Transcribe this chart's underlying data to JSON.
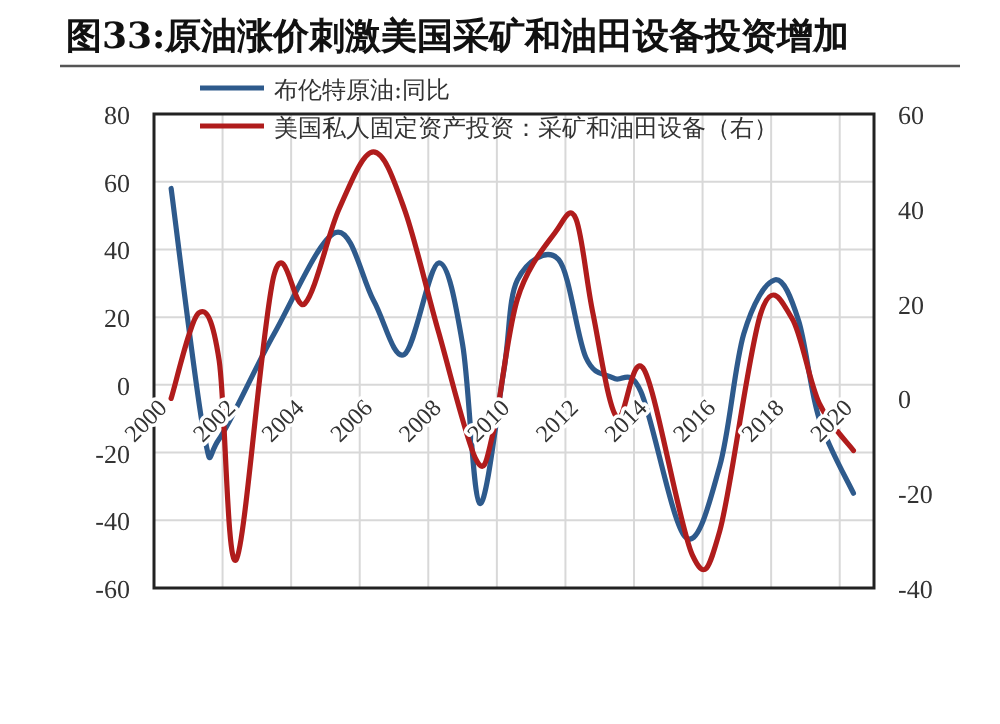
{
  "chart_data": {
    "type": "line",
    "title": "图33:原油涨价刺激美国采矿和油田设备投资增加",
    "xlim": [
      2000,
      2021
    ],
    "xticks": [
      2000,
      2002,
      2004,
      2006,
      2008,
      2010,
      2012,
      2014,
      2016,
      2018,
      2020
    ],
    "ylim": [
      -60,
      80
    ],
    "yticks": [
      -60,
      -40,
      -20,
      0,
      20,
      40,
      60,
      80
    ],
    "y2lim": [
      -40,
      60
    ],
    "y2ticks": [
      -40,
      -20,
      0,
      20,
      40,
      60
    ],
    "grid": true,
    "legend": "top left",
    "series": [
      {
        "name": "布伦特原油:同比",
        "color": "#2e5a8c",
        "x": [
          2000.5,
          2001.45,
          2001.9,
          2003.5,
          2005.3,
          2006.4,
          2007.3,
          2008.3,
          2009,
          2009.5,
          2010.2,
          2010.6,
          2011.8,
          2012.6,
          2013.4,
          2014.2,
          2015.5,
          2016.5,
          2017.2,
          2018.1,
          2018.8,
          2019.4,
          2020.4
        ],
        "values": [
          58,
          -14,
          -16,
          15,
          45,
          25,
          9,
          36,
          12,
          -35,
          4,
          31,
          37,
          8,
          2,
          -2,
          -45,
          -24,
          15,
          31,
          19,
          -10,
          -32
        ]
      },
      {
        "name": "美国私人固定资产投资：采矿和油田设备（右）",
        "color": "#b01c1c",
        "axis": "y2",
        "x": [
          2000.5,
          2001.3,
          2001.9,
          2002.4,
          2003.5,
          2004.4,
          2005.4,
          2006.4,
          2007.3,
          2008.3,
          2009.4,
          2009.9,
          2010.6,
          2011.7,
          2012.3,
          2012.8,
          2013.5,
          2014.3,
          2015.7,
          2016.5,
          2017.7,
          2018.6,
          2019.4,
          2020.4
        ],
        "values": [
          0,
          18,
          8,
          -34,
          26,
          20,
          40,
          52,
          40,
          14,
          -13,
          -7,
          21,
          35,
          38,
          18,
          -4,
          6,
          -33,
          -28,
          18,
          17,
          -1,
          -11
        ]
      }
    ]
  }
}
